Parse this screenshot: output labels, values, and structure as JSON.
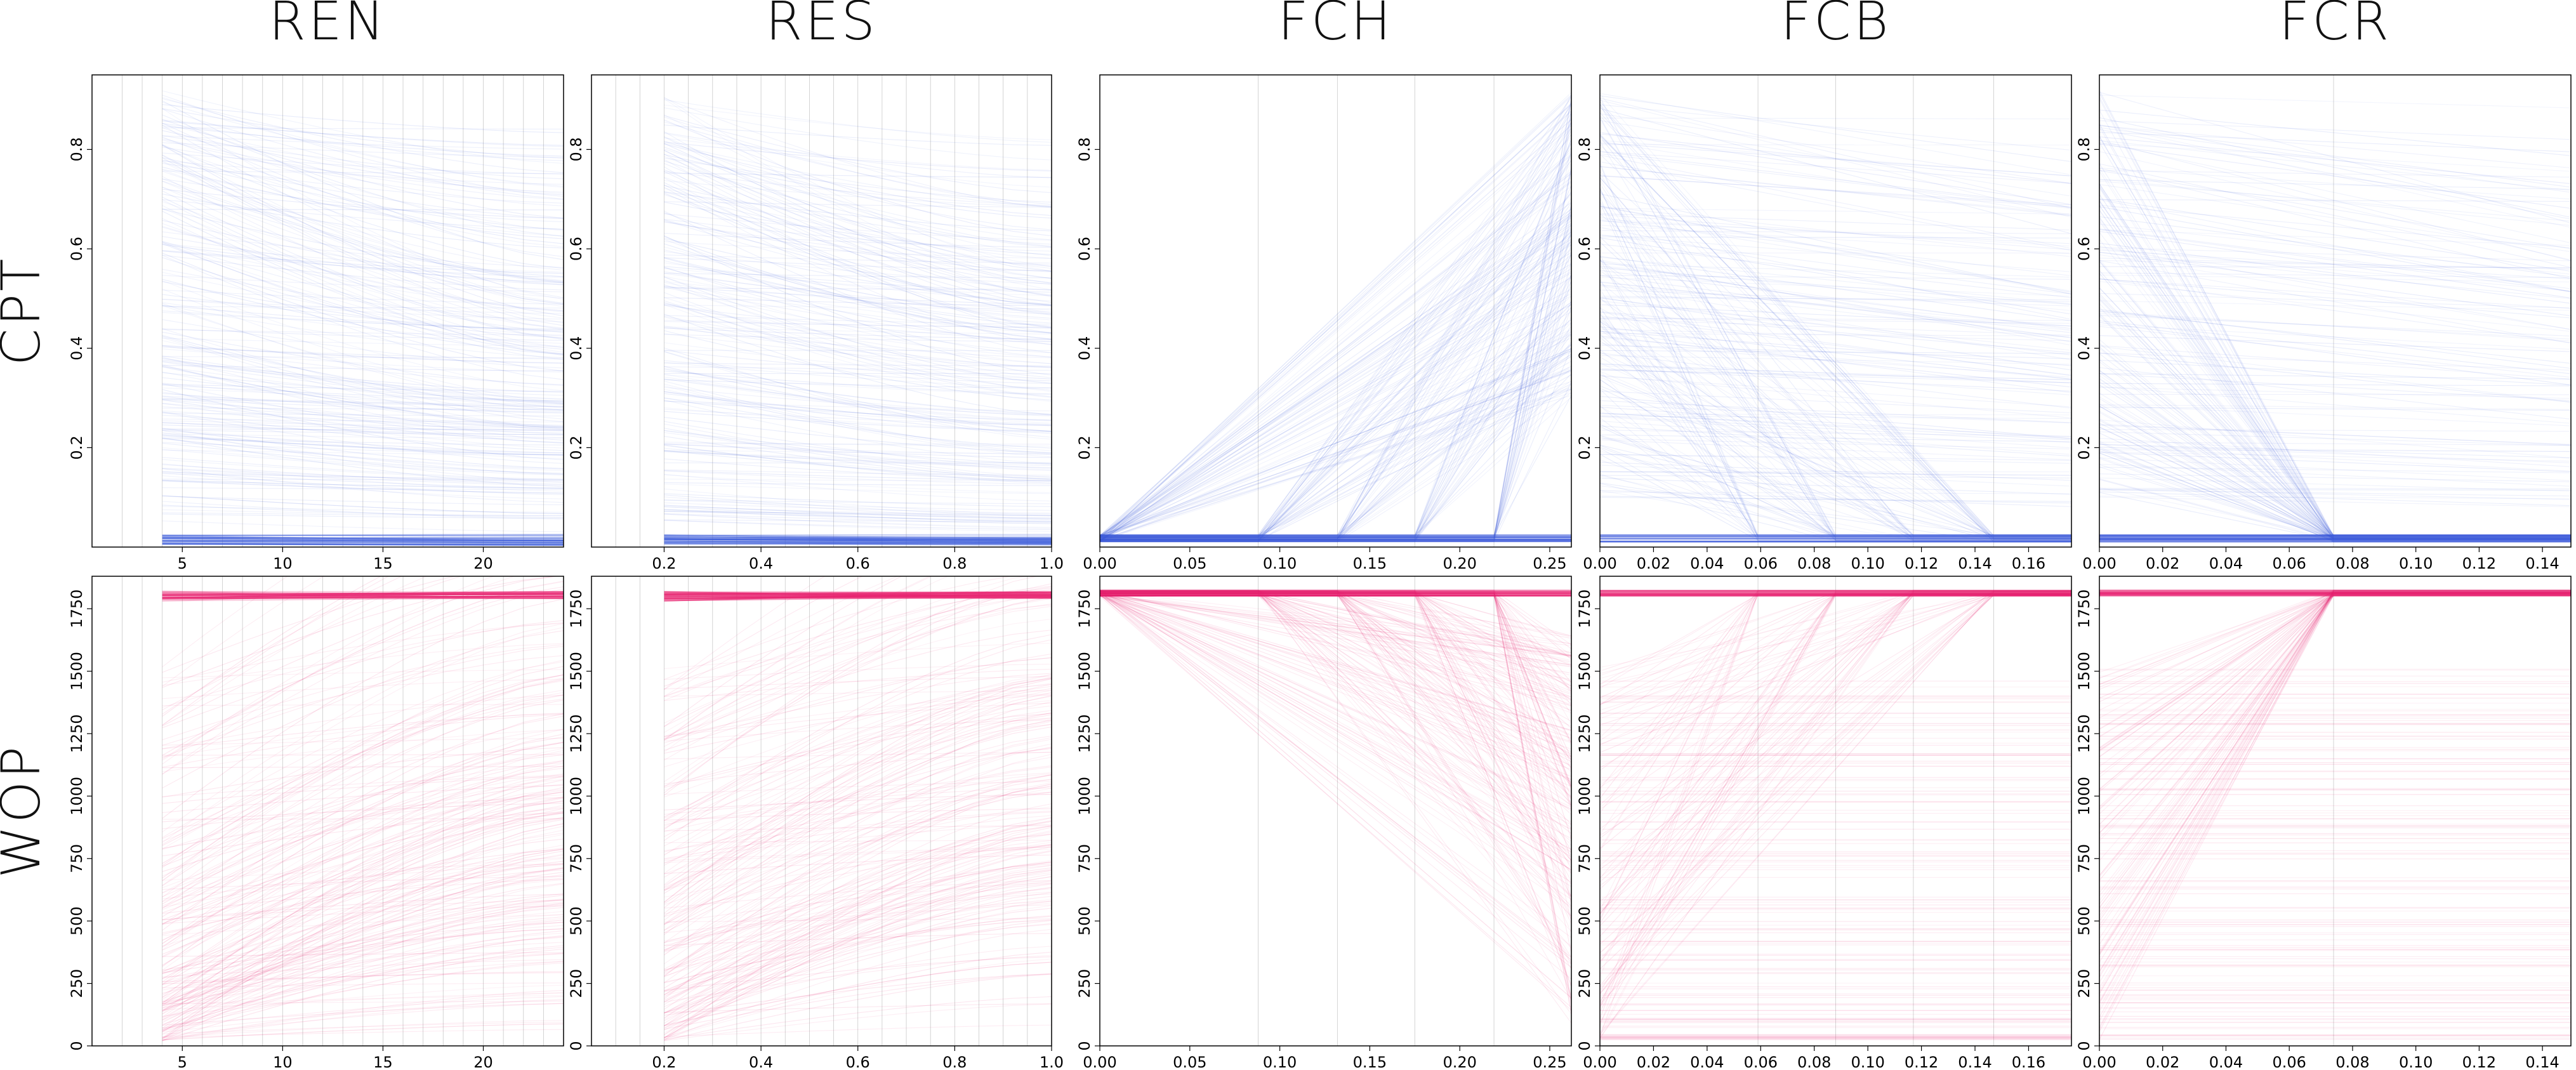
{
  "chart_data": {
    "type": "line",
    "column_titles": [
      "REN",
      "RES",
      "FCH",
      "FCB",
      "FCR"
    ],
    "row_titles": [
      "CPT",
      "WOP"
    ],
    "colors": {
      "CPT": "#3b5bdb",
      "WOP": "#e8216f"
    },
    "grid": "vertical lines at sampled x values",
    "legend": "none",
    "x_axes": [
      {
        "name": "REN",
        "xlim": [
          0.5,
          24
        ],
        "ticks": [
          "5",
          "10",
          "15",
          "20"
        ],
        "tick_values": [
          5,
          10,
          15,
          20
        ],
        "data_range": [
          4,
          24
        ],
        "faint_lines": [
          2,
          3
        ]
      },
      {
        "name": "RES",
        "xlim": [
          0.05,
          1.0
        ],
        "ticks": [
          "0.2",
          "0.4",
          "0.6",
          "0.8",
          "1.0"
        ],
        "tick_values": [
          0.2,
          0.4,
          0.6,
          0.8,
          1.0
        ],
        "data_range": [
          0.2,
          1.0
        ],
        "faint_lines": [
          0.1,
          0.15
        ]
      },
      {
        "name": "FCH",
        "xlim": [
          0.0,
          0.262
        ],
        "ticks": [
          "0.00",
          "0.05",
          "0.10",
          "0.15",
          "0.20",
          "0.25"
        ],
        "tick_values": [
          0.0,
          0.05,
          0.1,
          0.15,
          0.2,
          0.25
        ],
        "data_range": [
          0.0,
          0.262
        ],
        "breakpoints": [
          0.088,
          0.132,
          0.175,
          0.219
        ]
      },
      {
        "name": "FCB",
        "xlim": [
          0.0,
          0.176
        ],
        "ticks": [
          "0.00",
          "0.02",
          "0.04",
          "0.06",
          "0.08",
          "0.10",
          "0.12",
          "0.14",
          "0.16"
        ],
        "tick_values": [
          0.0,
          0.02,
          0.04,
          0.06,
          0.08,
          0.1,
          0.12,
          0.14,
          0.16
        ],
        "data_range": [
          0.0,
          0.176
        ],
        "breakpoints": [
          0.059,
          0.088,
          0.117,
          0.147
        ]
      },
      {
        "name": "FCR",
        "xlim": [
          0.0,
          0.149
        ],
        "ticks": [
          "0.00",
          "0.02",
          "0.04",
          "0.06",
          "0.08",
          "0.10",
          "0.12",
          "0.14"
        ],
        "tick_values": [
          0.0,
          0.02,
          0.04,
          0.06,
          0.08,
          0.1,
          0.12,
          0.14
        ],
        "data_range": [
          0.0,
          0.149
        ],
        "breakpoints": [
          0.074
        ]
      }
    ],
    "y_axes": {
      "CPT": {
        "ylim": [
          0.0,
          0.95
        ],
        "ticks": [
          "0.2",
          "0.4",
          "0.6",
          "0.8"
        ],
        "tick_values": [
          0.2,
          0.4,
          0.6,
          0.8
        ]
      },
      "WOP": {
        "ylim": [
          0,
          1880
        ],
        "ticks": [
          "0",
          "250",
          "500",
          "750",
          "1000",
          "1250",
          "1500",
          "1750"
        ],
        "tick_values": [
          0,
          250,
          500,
          750,
          1000,
          1250,
          1500,
          1750
        ]
      }
    }
  }
}
